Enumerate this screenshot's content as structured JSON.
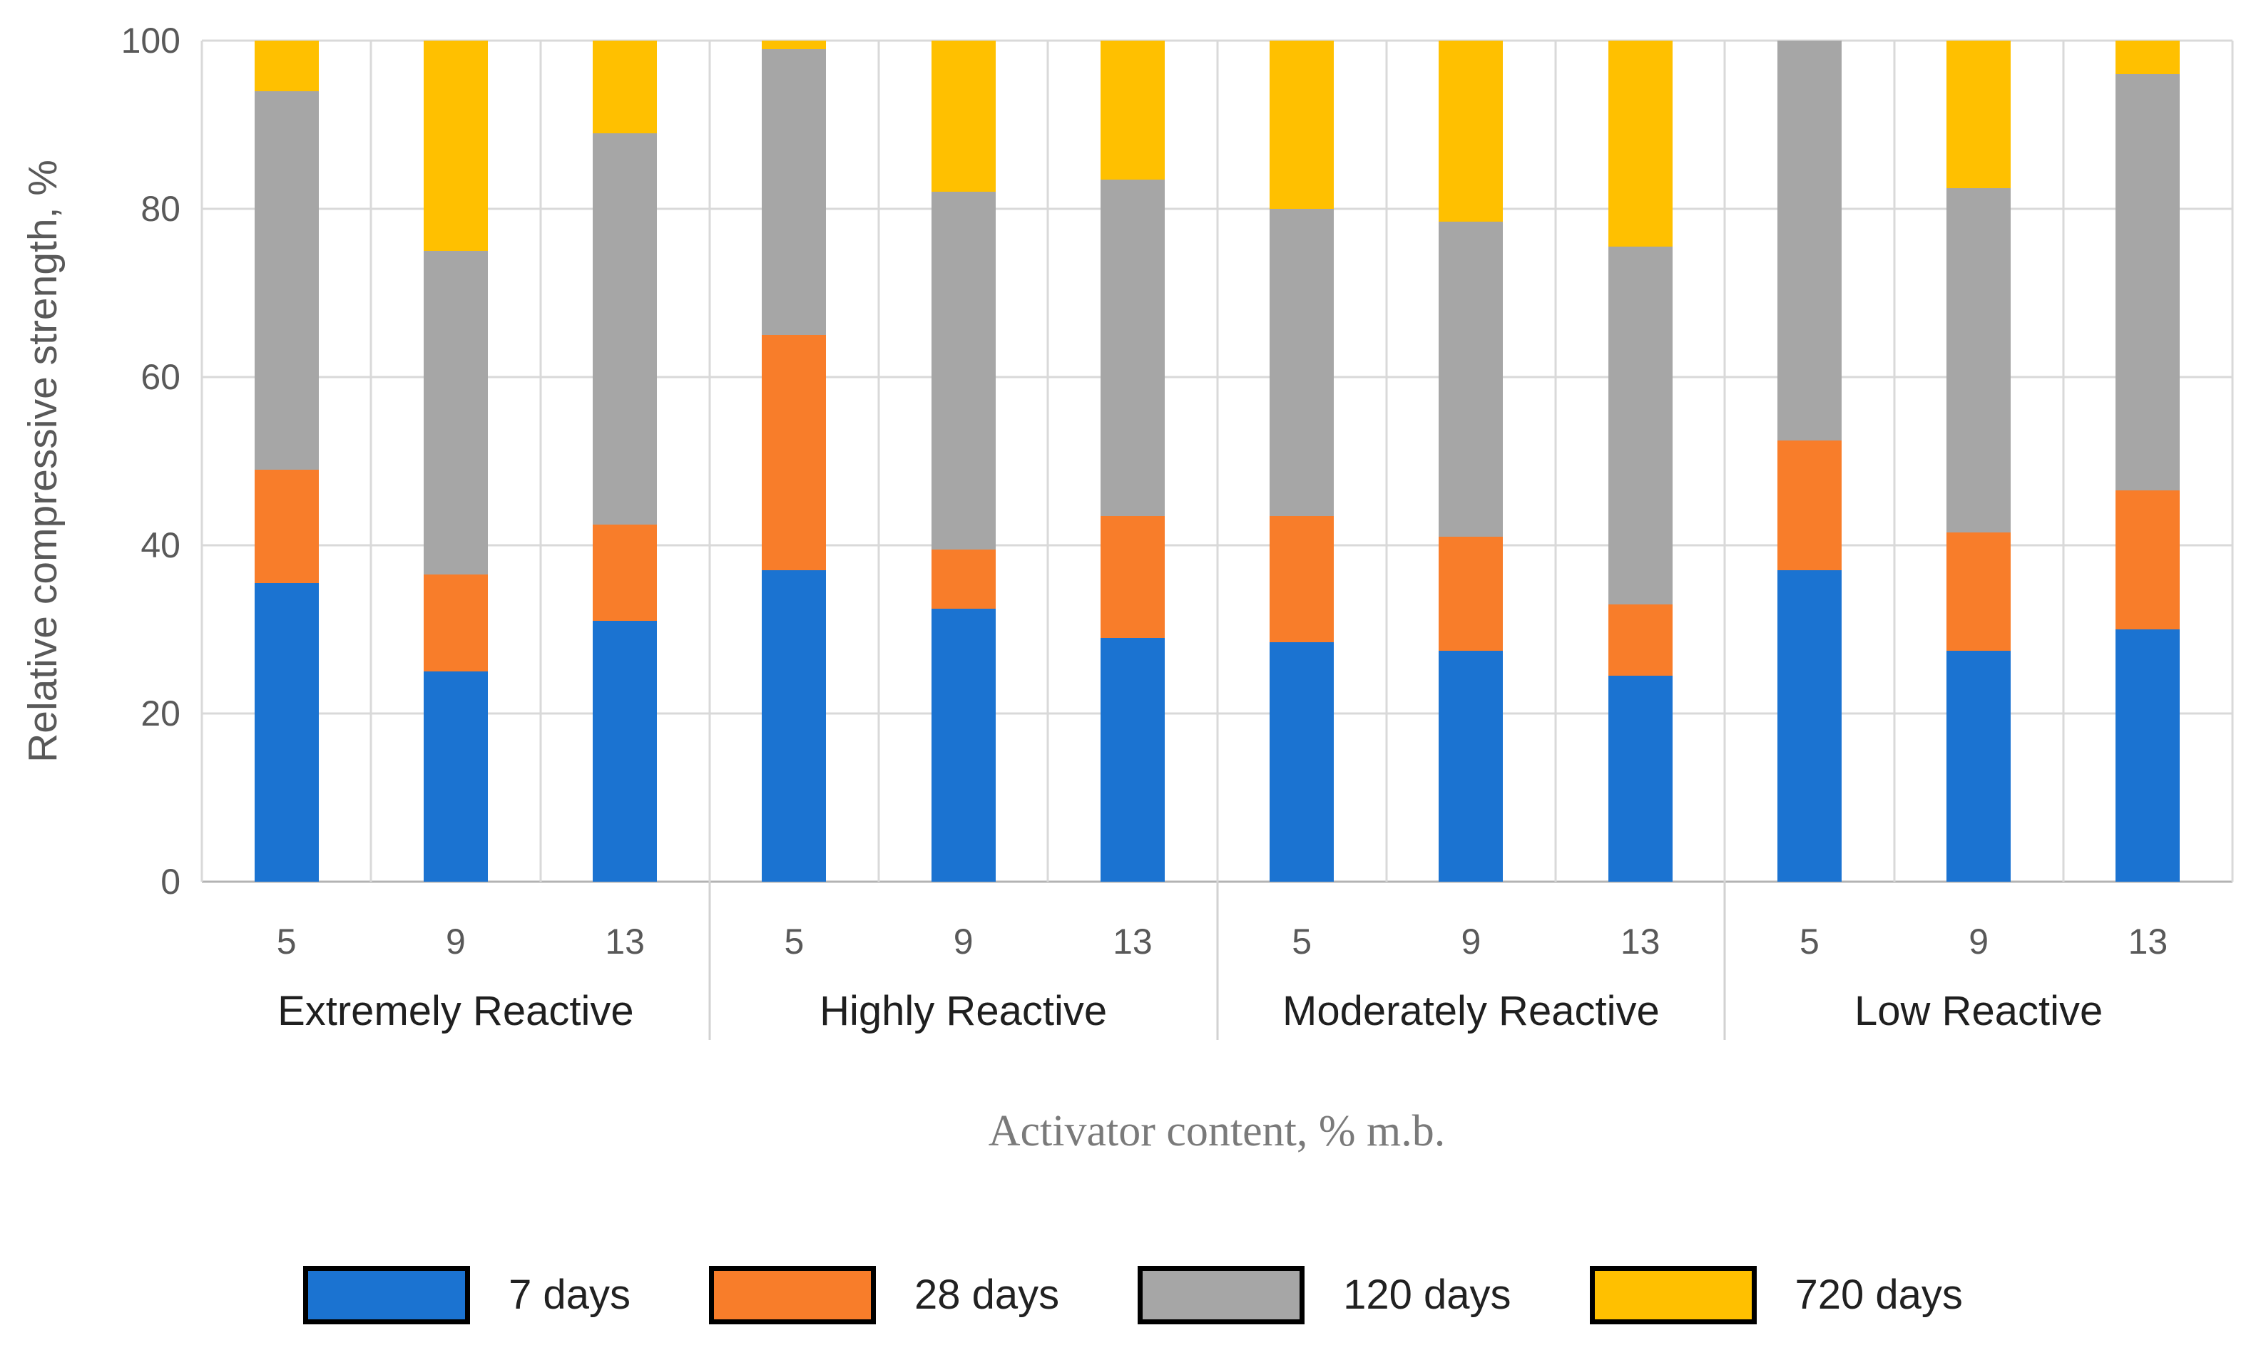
{
  "figure": {
    "y_axis_title": "Relative compressive strength, %",
    "x_axis_title": "Activator content, % m.b."
  },
  "chart_data": {
    "type": "bar",
    "stacked": true,
    "orientation": "vertical",
    "ylabel": "Relative compressive strength, %",
    "xlabel": "Activator content, % m.b.",
    "ylim": [
      0,
      100
    ],
    "yticks": [
      0,
      20,
      40,
      60,
      80,
      100
    ],
    "grid": "horizontal-and-vertical-cell-borders",
    "legend_position": "bottom",
    "groups": [
      {
        "label": "Extremely Reactive",
        "categories": [
          "5",
          "9",
          "13"
        ]
      },
      {
        "label": "Highly Reactive",
        "categories": [
          "5",
          "9",
          "13"
        ]
      },
      {
        "label": "Moderately Reactive",
        "categories": [
          "5",
          "9",
          "13"
        ]
      },
      {
        "label": "Low Reactive",
        "categories": [
          "5",
          "9",
          "13"
        ]
      }
    ],
    "series": [
      {
        "name": "7 days",
        "color": "#1B73D1",
        "values": [
          35.5,
          25,
          31,
          37,
          32.5,
          29,
          28.5,
          27.5,
          24.5,
          37,
          27.5,
          30
        ]
      },
      {
        "name": "28 days",
        "color": "#F87D2A",
        "values": [
          13.5,
          11.5,
          11.5,
          28,
          7,
          14.5,
          15,
          13.5,
          8.5,
          15.5,
          14,
          16.5
        ]
      },
      {
        "name": "120 days",
        "color": "#A6A6A6",
        "values": [
          45,
          38.5,
          46.5,
          34,
          42.5,
          40,
          36.5,
          37.5,
          42.5,
          47.5,
          41,
          49.5
        ]
      },
      {
        "name": "720 days",
        "color": "#FFC000",
        "values": [
          6,
          25,
          11,
          1,
          18,
          16.5,
          20,
          21.5,
          24.5,
          0,
          17.5,
          4
        ]
      }
    ]
  },
  "legend": {
    "items": [
      {
        "label": "7 days",
        "color": "#1B73D1"
      },
      {
        "label": "28 days",
        "color": "#F87D2A"
      },
      {
        "label": "120 days",
        "color": "#A6A6A6"
      },
      {
        "label": "720 days",
        "color": "#FFC000"
      }
    ]
  },
  "style": {
    "gridline_color": "#D9D9D9",
    "axis_line_color": "#B3B3B3",
    "group_divider_color": "#D2D2D2",
    "tick_text_color": "#595959",
    "group_text_color": "#1F1F1F",
    "x_title_color": "#7A7A7A",
    "legend_text_color": "#212121",
    "legend_border_color": "#000000"
  }
}
